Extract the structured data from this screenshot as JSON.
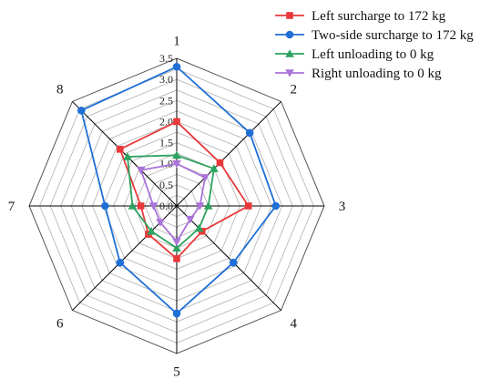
{
  "chart_data": {
    "type": "radar",
    "title": "",
    "axis_labels": [
      "1",
      "2",
      "3",
      "4",
      "5",
      "6",
      "7",
      "8"
    ],
    "radial_range": [
      0,
      3.5
    ],
    "radial_ticks": [
      "0.0",
      "0.5",
      "1.0",
      "1.5",
      "2.0",
      "2.5",
      "3.0",
      "3.5"
    ],
    "grid": true,
    "legend_position": "top-right",
    "series": [
      {
        "name": "Left surcharge to 172 kg",
        "color": "#e8393a",
        "marker": "square",
        "values": [
          2.0,
          1.45,
          1.7,
          0.85,
          1.25,
          0.95,
          0.85,
          1.9
        ]
      },
      {
        "name": "Two-side surcharge to 172 kg",
        "color": "#1f6fd6",
        "marker": "circle",
        "values": [
          3.3,
          2.45,
          2.35,
          1.9,
          2.55,
          1.9,
          1.7,
          3.2
        ]
      },
      {
        "name": "Left unloading to 0 kg",
        "color": "#2ca25f",
        "marker": "triangle-up",
        "values": [
          1.2,
          1.25,
          0.75,
          0.75,
          1.0,
          0.85,
          1.05,
          1.65
        ]
      },
      {
        "name": "Right unloading to 0 kg",
        "color": "#a974d8",
        "marker": "triangle-down",
        "values": [
          1.0,
          0.95,
          0.55,
          0.45,
          0.85,
          0.55,
          0.55,
          1.2
        ]
      }
    ]
  }
}
